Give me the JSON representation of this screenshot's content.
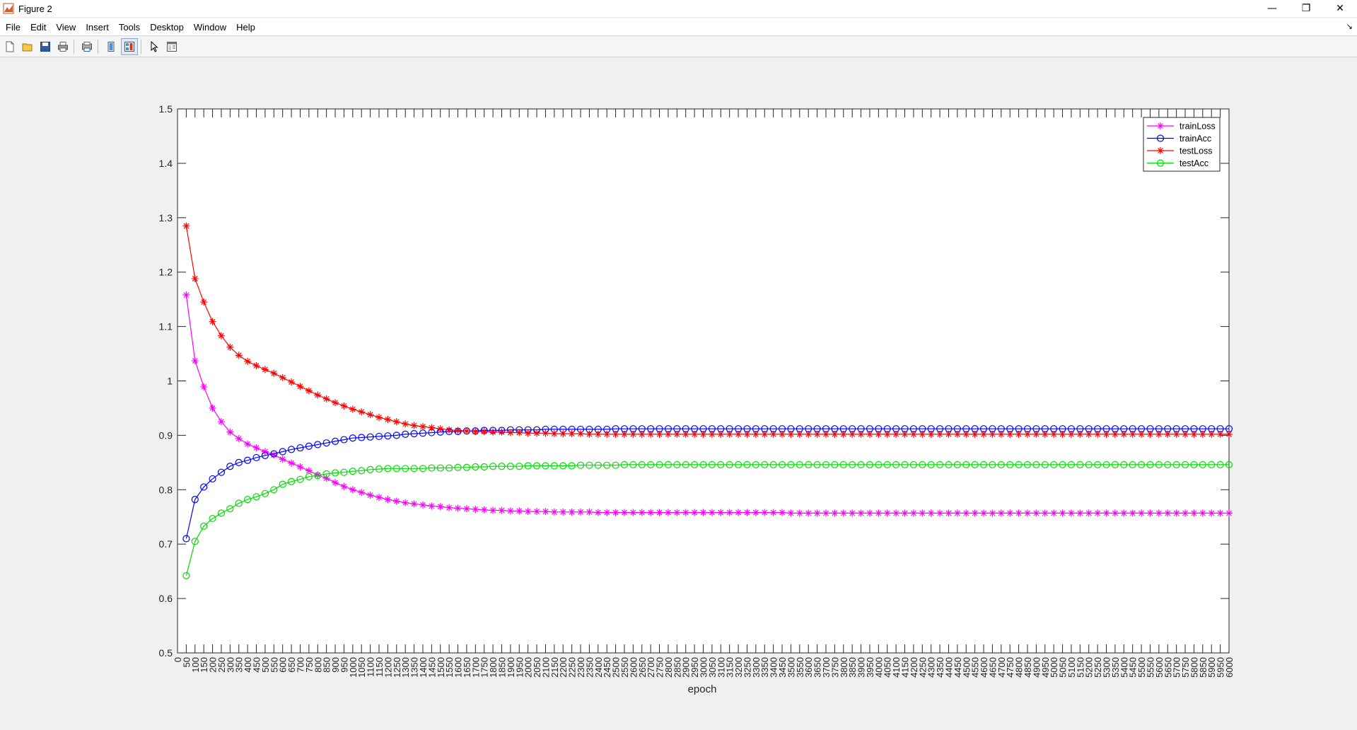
{
  "window": {
    "title": "Figure 2",
    "controls": {
      "minimize": "—",
      "maximize": "❐",
      "close": "✕"
    }
  },
  "menu": [
    "File",
    "Edit",
    "View",
    "Insert",
    "Tools",
    "Desktop",
    "Window",
    "Help"
  ],
  "toolbar_icons": [
    "new-figure-icon",
    "open-file-icon",
    "save-icon",
    "print-icon",
    "print-preview-icon",
    "hide-plot-tools-icon",
    "show-plot-tools-icon",
    "edit-plot-arrow-icon",
    "open-property-inspector-icon"
  ],
  "chart_data": {
    "type": "line",
    "title": "",
    "xlabel": "epoch",
    "ylabel": "",
    "xlim": [
      0,
      6000
    ],
    "ylim": [
      0.5,
      1.5
    ],
    "y_ticks": [
      0.5,
      0.6,
      0.7,
      0.8,
      0.9,
      1,
      1.1,
      1.2,
      1.3,
      1.4,
      1.5
    ],
    "y_tick_labels": [
      "0.5",
      "0.6",
      "0.7",
      "0.8",
      "0.9",
      "1",
      "1.1",
      "1.2",
      "1.3",
      "1.4",
      "1.5"
    ],
    "x_tick_step": 50,
    "grid": false,
    "legend_position": "top-right",
    "x": [
      50,
      100,
      150,
      200,
      250,
      300,
      350,
      400,
      450,
      500,
      550,
      600,
      650,
      700,
      750,
      800,
      850,
      900,
      950,
      1000,
      1050,
      1100,
      1150,
      1200,
      1250,
      1300,
      1350,
      1400,
      1450,
      1500,
      1550,
      1600,
      1650,
      1700,
      1750,
      1800,
      1850,
      1900,
      1950,
      2000,
      2050,
      2100,
      2150,
      2200,
      2250,
      2300,
      2350,
      2400,
      2450,
      2500,
      2550,
      2600,
      2650,
      2700,
      2750,
      2800,
      2850,
      2900,
      2950,
      3000,
      3050,
      3100,
      3150,
      3200,
      3250,
      3300,
      3350,
      3400,
      3450,
      3500,
      3550,
      3600,
      3650,
      3700,
      3750,
      3800,
      3850,
      3900,
      3950,
      4000,
      4050,
      4100,
      4150,
      4200,
      4250,
      4300,
      4350,
      4400,
      4450,
      4500,
      4550,
      4600,
      4650,
      4700,
      4750,
      4800,
      4850,
      4900,
      4950,
      5000,
      5050,
      5100,
      5150,
      5200,
      5250,
      5300,
      5350,
      5400,
      5450,
      5500,
      5550,
      5600,
      5650,
      5700,
      5750,
      5800,
      5850,
      5900,
      5950,
      6000
    ],
    "series": [
      {
        "name": "trainLoss",
        "color": "#ff00ff",
        "marker": "star",
        "values": [
          1.158,
          1.037,
          0.989,
          0.95,
          0.925,
          0.906,
          0.894,
          0.884,
          0.877,
          0.87,
          0.864,
          0.856,
          0.849,
          0.842,
          0.835,
          0.827,
          0.821,
          0.813,
          0.806,
          0.8,
          0.795,
          0.79,
          0.786,
          0.782,
          0.779,
          0.776,
          0.774,
          0.772,
          0.77,
          0.769,
          0.767,
          0.766,
          0.765,
          0.764,
          0.763,
          0.762,
          0.762,
          0.761,
          0.761,
          0.76,
          0.76,
          0.76,
          0.759,
          0.759,
          0.759,
          0.759,
          0.759,
          0.758,
          0.758,
          0.758,
          0.758,
          0.758,
          0.758,
          0.758,
          0.758,
          0.758,
          0.758,
          0.758,
          0.758,
          0.758,
          0.758,
          0.758,
          0.758,
          0.758,
          0.758,
          0.758,
          0.758,
          0.758,
          0.758,
          0.757,
          0.757,
          0.757,
          0.757,
          0.757,
          0.757,
          0.757,
          0.757,
          0.757,
          0.757,
          0.757,
          0.757,
          0.757,
          0.757,
          0.757,
          0.757,
          0.757,
          0.757,
          0.757,
          0.757,
          0.757,
          0.757,
          0.757,
          0.757,
          0.757,
          0.757,
          0.757,
          0.757,
          0.757,
          0.757,
          0.757,
          0.757,
          0.757,
          0.757,
          0.757,
          0.757,
          0.757,
          0.757,
          0.757,
          0.757,
          0.757,
          0.757,
          0.757,
          0.757,
          0.757,
          0.757,
          0.757,
          0.757,
          0.757,
          0.757,
          0.757
        ]
      },
      {
        "name": "trainAcc",
        "color": "#0000ff",
        "marker": "circle",
        "values": [
          0.71,
          0.782,
          0.805,
          0.82,
          0.832,
          0.843,
          0.85,
          0.854,
          0.859,
          0.863,
          0.866,
          0.87,
          0.874,
          0.877,
          0.88,
          0.883,
          0.886,
          0.889,
          0.892,
          0.895,
          0.896,
          0.897,
          0.898,
          0.899,
          0.9,
          0.902,
          0.903,
          0.904,
          0.905,
          0.906,
          0.907,
          0.907,
          0.908,
          0.908,
          0.909,
          0.909,
          0.909,
          0.91,
          0.91,
          0.91,
          0.91,
          0.911,
          0.911,
          0.911,
          0.911,
          0.911,
          0.911,
          0.911,
          0.911,
          0.912,
          0.912,
          0.912,
          0.912,
          0.912,
          0.912,
          0.912,
          0.912,
          0.912,
          0.912,
          0.912,
          0.912,
          0.912,
          0.912,
          0.912,
          0.912,
          0.912,
          0.912,
          0.912,
          0.912,
          0.912,
          0.912,
          0.912,
          0.912,
          0.912,
          0.912,
          0.912,
          0.912,
          0.912,
          0.912,
          0.912,
          0.912,
          0.912,
          0.912,
          0.912,
          0.912,
          0.912,
          0.912,
          0.912,
          0.912,
          0.912,
          0.912,
          0.912,
          0.912,
          0.912,
          0.912,
          0.912,
          0.912,
          0.912,
          0.912,
          0.912,
          0.912,
          0.912,
          0.912,
          0.912,
          0.912,
          0.912,
          0.912,
          0.912,
          0.912,
          0.912,
          0.912,
          0.912,
          0.912,
          0.912,
          0.912,
          0.912,
          0.912,
          0.912,
          0.912,
          0.912
        ]
      },
      {
        "name": "testLoss",
        "color": "#ff0000",
        "marker": "star",
        "values": [
          1.285,
          1.188,
          1.145,
          1.109,
          1.083,
          1.062,
          1.047,
          1.036,
          1.028,
          1.021,
          1.014,
          1.006,
          0.998,
          0.99,
          0.982,
          0.974,
          0.967,
          0.96,
          0.954,
          0.948,
          0.943,
          0.938,
          0.933,
          0.929,
          0.925,
          0.921,
          0.918,
          0.916,
          0.914,
          0.912,
          0.91,
          0.909,
          0.908,
          0.907,
          0.907,
          0.906,
          0.906,
          0.905,
          0.905,
          0.904,
          0.904,
          0.904,
          0.903,
          0.903,
          0.903,
          0.903,
          0.902,
          0.902,
          0.902,
          0.902,
          0.902,
          0.902,
          0.902,
          0.902,
          0.902,
          0.902,
          0.902,
          0.902,
          0.902,
          0.902,
          0.902,
          0.902,
          0.902,
          0.902,
          0.902,
          0.902,
          0.902,
          0.902,
          0.902,
          0.902,
          0.902,
          0.902,
          0.902,
          0.902,
          0.902,
          0.902,
          0.902,
          0.902,
          0.902,
          0.902,
          0.902,
          0.902,
          0.902,
          0.902,
          0.902,
          0.902,
          0.902,
          0.902,
          0.902,
          0.902,
          0.902,
          0.902,
          0.902,
          0.902,
          0.902,
          0.902,
          0.902,
          0.902,
          0.902,
          0.902,
          0.902,
          0.902,
          0.902,
          0.902,
          0.902,
          0.902,
          0.902,
          0.902,
          0.902,
          0.902,
          0.902,
          0.902,
          0.902,
          0.902,
          0.902,
          0.902,
          0.902,
          0.902,
          0.902,
          0.902
        ]
      },
      {
        "name": "testAcc",
        "color": "#00dd00",
        "marker": "circle",
        "values": [
          0.642,
          0.705,
          0.733,
          0.747,
          0.757,
          0.765,
          0.775,
          0.782,
          0.787,
          0.793,
          0.8,
          0.81,
          0.815,
          0.819,
          0.824,
          0.826,
          0.829,
          0.831,
          0.832,
          0.834,
          0.835,
          0.837,
          0.838,
          0.839,
          0.839,
          0.839,
          0.839,
          0.839,
          0.84,
          0.84,
          0.84,
          0.841,
          0.841,
          0.842,
          0.842,
          0.843,
          0.843,
          0.843,
          0.843,
          0.844,
          0.844,
          0.844,
          0.844,
          0.844,
          0.844,
          0.845,
          0.845,
          0.845,
          0.845,
          0.845,
          0.846,
          0.846,
          0.846,
          0.846,
          0.846,
          0.846,
          0.846,
          0.846,
          0.846,
          0.846,
          0.846,
          0.846,
          0.846,
          0.846,
          0.846,
          0.846,
          0.846,
          0.846,
          0.846,
          0.846,
          0.846,
          0.846,
          0.846,
          0.846,
          0.846,
          0.846,
          0.846,
          0.846,
          0.846,
          0.846,
          0.846,
          0.846,
          0.846,
          0.846,
          0.846,
          0.846,
          0.846,
          0.846,
          0.846,
          0.846,
          0.846,
          0.846,
          0.846,
          0.846,
          0.846,
          0.846,
          0.846,
          0.846,
          0.846,
          0.846,
          0.846,
          0.846,
          0.846,
          0.846,
          0.846,
          0.846,
          0.846,
          0.846,
          0.846,
          0.846,
          0.846,
          0.846,
          0.846,
          0.846,
          0.846,
          0.846,
          0.846,
          0.846,
          0.846,
          0.846
        ]
      }
    ]
  }
}
